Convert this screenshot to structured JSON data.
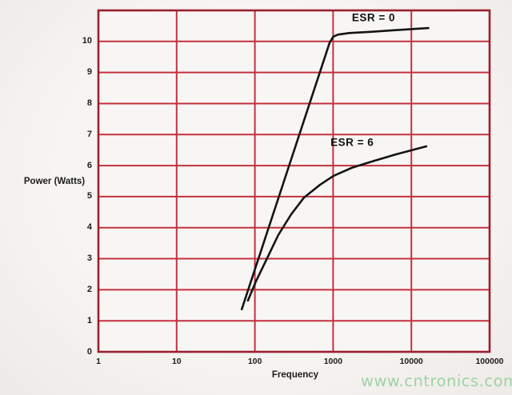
{
  "watermark": {
    "text": "www.cntronics.com",
    "color": "#9fd2a2"
  },
  "chart_data": {
    "type": "line",
    "xlabel": "Frequency",
    "ylabel": "Power (Watts)",
    "x_scale": "log",
    "x_range": [
      1,
      100000
    ],
    "y_range": [
      0,
      11
    ],
    "x_ticks": [
      "1",
      "10",
      "100",
      "1000",
      "10000",
      "100000"
    ],
    "y_ticks": [
      "0",
      "1",
      "2",
      "3",
      "4",
      "5",
      "6",
      "7",
      "8",
      "9",
      "10"
    ],
    "grid_on": true,
    "grid_color": "#c3313f",
    "border_color": "#97212f",
    "series": [
      {
        "name": "ESR = 0",
        "color": "#141414",
        "label_at": {
          "f": 3290,
          "p": 10.78
        },
        "points": [
          [
            68,
            1.37
          ],
          [
            900,
            9.95
          ],
          [
            1000,
            10.15
          ],
          [
            1150,
            10.22
          ],
          [
            1600,
            10.27
          ],
          [
            3000,
            10.31
          ],
          [
            6000,
            10.36
          ],
          [
            16500,
            10.43
          ]
        ]
      },
      {
        "name": "ESR = 6",
        "color": "#141414",
        "label_at": {
          "f": 1750,
          "p": 6.76
        },
        "points": [
          [
            81.5,
            1.65
          ],
          [
            103,
            2.27
          ],
          [
            143,
            3.01
          ],
          [
            199,
            3.76
          ],
          [
            291,
            4.43
          ],
          [
            424,
            4.97
          ],
          [
            678,
            5.38
          ],
          [
            1012,
            5.67
          ],
          [
            1740,
            5.93
          ],
          [
            3130,
            6.13
          ],
          [
            6320,
            6.36
          ],
          [
            15540,
            6.62
          ]
        ]
      }
    ]
  }
}
